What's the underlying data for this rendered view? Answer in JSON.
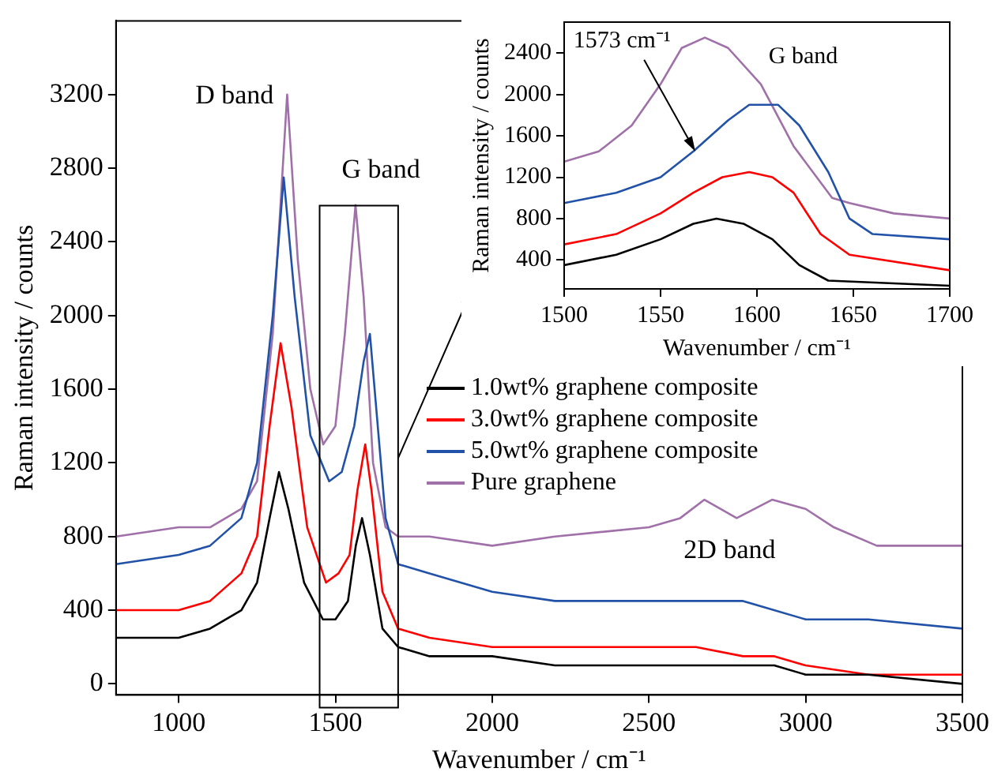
{
  "chart_data": [
    {
      "type": "line",
      "xlabel": "Wavenumber / cm⁻¹",
      "ylabel": "Raman intensity / counts",
      "xlim": [
        800,
        3500
      ],
      "xticks": [
        1000,
        1500,
        2000,
        2500,
        3000,
        3500
      ],
      "ylim": [
        -60,
        3600
      ],
      "yticks": [
        0,
        400,
        800,
        1200,
        1600,
        2000,
        2400,
        2800,
        3200
      ],
      "grid": false,
      "legend": "right",
      "marker": "none",
      "line_style": "solid",
      "annotations": [
        "D band",
        "G band",
        "2D band"
      ],
      "series": [
        {
          "name": "1.0wt% graphene composite",
          "color": "#000000",
          "x": [
            800,
            1000,
            1100,
            1200,
            1250,
            1290,
            1320,
            1350,
            1400,
            1460,
            1500,
            1540,
            1565,
            1585,
            1610,
            1650,
            1700,
            1800,
            2000,
            2200,
            2500,
            2650,
            2800,
            2900,
            3000,
            3200,
            3500
          ],
          "values": [
            250,
            250,
            300,
            400,
            550,
            900,
            1150,
            950,
            550,
            350,
            350,
            450,
            750,
            900,
            700,
            300,
            200,
            150,
            150,
            100,
            100,
            100,
            100,
            100,
            50,
            50,
            0
          ]
        },
        {
          "name": "3.0wt% graphene composite",
          "color": "#ff0000",
          "x": [
            800,
            1000,
            1100,
            1200,
            1250,
            1290,
            1325,
            1360,
            1410,
            1470,
            1510,
            1545,
            1570,
            1595,
            1615,
            1650,
            1700,
            1800,
            2000,
            2200,
            2500,
            2650,
            2800,
            2900,
            3000,
            3200,
            3500
          ],
          "values": [
            400,
            400,
            450,
            600,
            800,
            1400,
            1850,
            1500,
            850,
            550,
            600,
            700,
            1050,
            1300,
            1050,
            500,
            300,
            250,
            200,
            200,
            200,
            200,
            150,
            150,
            100,
            50,
            50
          ]
        },
        {
          "name": "5.0wt% graphene composite",
          "color": "#2152a8",
          "x": [
            800,
            1000,
            1100,
            1200,
            1250,
            1300,
            1335,
            1370,
            1420,
            1480,
            1520,
            1560,
            1590,
            1610,
            1630,
            1660,
            1700,
            1800,
            2000,
            2200,
            2500,
            2650,
            2800,
            3000,
            3200,
            3500
          ],
          "values": [
            650,
            700,
            750,
            900,
            1200,
            2000,
            2750,
            2100,
            1350,
            1100,
            1150,
            1400,
            1750,
            1900,
            1500,
            900,
            650,
            600,
            500,
            450,
            450,
            450,
            450,
            350,
            350,
            300
          ]
        },
        {
          "name": "Pure graphene",
          "color": "#a070a8",
          "x": [
            800,
            1000,
            1100,
            1200,
            1250,
            1300,
            1346,
            1380,
            1420,
            1461,
            1500,
            1530,
            1564,
            1590,
            1620,
            1660,
            1700,
            1800,
            2000,
            2200,
            2500,
            2600,
            2677,
            2780,
            2893,
            3000,
            3090,
            3227,
            3500
          ],
          "values": [
            800,
            850,
            850,
            950,
            1100,
            1900,
            3200,
            2300,
            1600,
            1300,
            1400,
            1900,
            2600,
            2100,
            1200,
            850,
            800,
            800,
            750,
            800,
            850,
            900,
            1000,
            900,
            1000,
            950,
            850,
            750,
            750
          ]
        }
      ]
    },
    {
      "type": "line",
      "xlabel": "Wavenumber / cm⁻¹",
      "ylabel": "Raman intensity / counts",
      "xlim": [
        1500,
        1700
      ],
      "xticks": [
        1500,
        1550,
        1600,
        1650,
        1700
      ],
      "ylim": [
        120,
        2700
      ],
      "yticks": [
        400,
        800,
        1200,
        1600,
        2000,
        2400
      ],
      "grid": false,
      "legend": false,
      "marker": "none",
      "line_style": "solid",
      "annotations": [
        {
          "text": "1573 cm⁻¹",
          "x": 1568,
          "y": 1450
        },
        "G band"
      ],
      "series": [
        {
          "color": "#000000",
          "x": [
            1500,
            1527,
            1550,
            1567,
            1579,
            1593,
            1608,
            1622,
            1637,
            1700
          ],
          "values": [
            350,
            450,
            600,
            750,
            800,
            750,
            600,
            350,
            200,
            150
          ]
        },
        {
          "color": "#ff0000",
          "x": [
            1500,
            1527,
            1550,
            1567,
            1582,
            1596,
            1608,
            1619,
            1633,
            1648,
            1700
          ],
          "values": [
            550,
            650,
            850,
            1050,
            1200,
            1250,
            1200,
            1050,
            650,
            450,
            300
          ]
        },
        {
          "color": "#2152a8",
          "x": [
            1500,
            1527,
            1550,
            1567,
            1585,
            1596,
            1611,
            1622,
            1637,
            1648,
            1660,
            1700
          ],
          "values": [
            950,
            1050,
            1200,
            1450,
            1750,
            1900,
            1900,
            1700,
            1250,
            800,
            650,
            600
          ]
        },
        {
          "color": "#a070a8",
          "x": [
            1500,
            1518,
            1535,
            1550,
            1561,
            1573,
            1585,
            1602,
            1619,
            1639,
            1648,
            1671,
            1700
          ],
          "values": [
            1350,
            1450,
            1700,
            2100,
            2450,
            2550,
            2450,
            2100,
            1500,
            1000,
            950,
            850,
            800
          ]
        }
      ]
    }
  ]
}
